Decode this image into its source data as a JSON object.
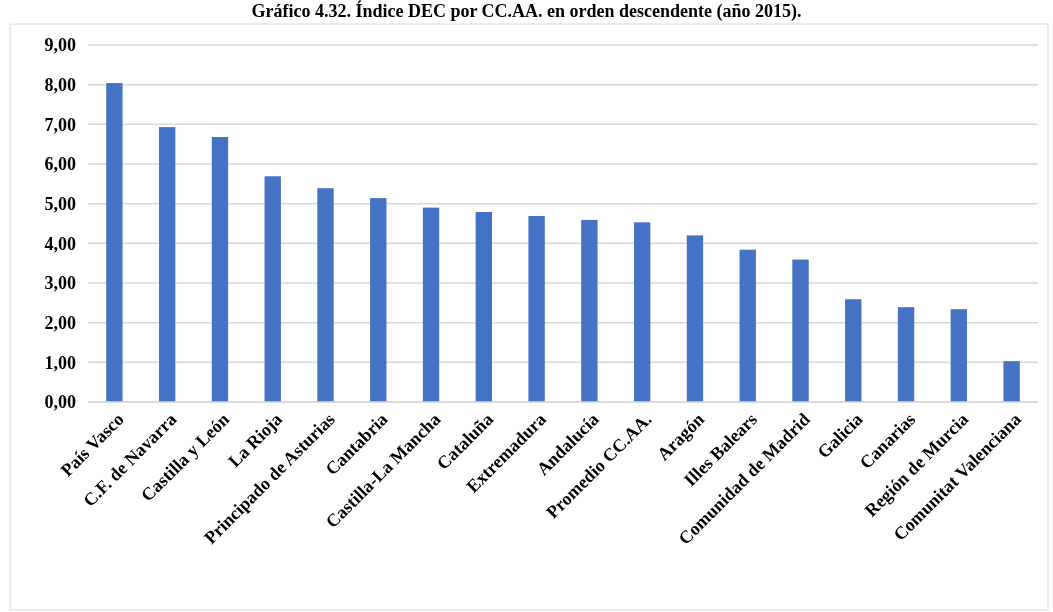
{
  "chart_data": {
    "type": "bar",
    "title": "Gráfico 4.32. Índice DEC por CC.AA. en orden descendente (año 2015).",
    "categories": [
      "País Vasco",
      "C.F. de Navarra",
      "Castilla y León",
      "La Rioja",
      "Principado de Asturias",
      "Cantabria",
      "Castilla-La Mancha",
      "Cataluña",
      "Extremadura",
      "Andalucía",
      "Promedio CC.AA.",
      "Aragón",
      "Illes Balears",
      "Comunidad de Madrid",
      "Galicia",
      "Canarias",
      "Región de Murcia",
      "Comunitat Valenciana"
    ],
    "values": [
      8.04,
      6.93,
      6.68,
      5.69,
      5.39,
      5.14,
      4.9,
      4.79,
      4.69,
      4.59,
      4.53,
      4.2,
      3.84,
      3.59,
      2.59,
      2.39,
      2.34,
      1.03
    ],
    "color": "#4472c4",
    "ylim": [
      0,
      9
    ],
    "yticks": [
      {
        "value": 0,
        "label": "0,00"
      },
      {
        "value": 1,
        "label": "1,00"
      },
      {
        "value": 2,
        "label": "2,00"
      },
      {
        "value": 3,
        "label": "3,00"
      },
      {
        "value": 4,
        "label": "4,00"
      },
      {
        "value": 5,
        "label": "5,00"
      },
      {
        "value": 6,
        "label": "6,00"
      },
      {
        "value": 7,
        "label": "7,00"
      },
      {
        "value": 8,
        "label": "8,00"
      },
      {
        "value": 9,
        "label": "9,00"
      }
    ],
    "grid": true
  }
}
